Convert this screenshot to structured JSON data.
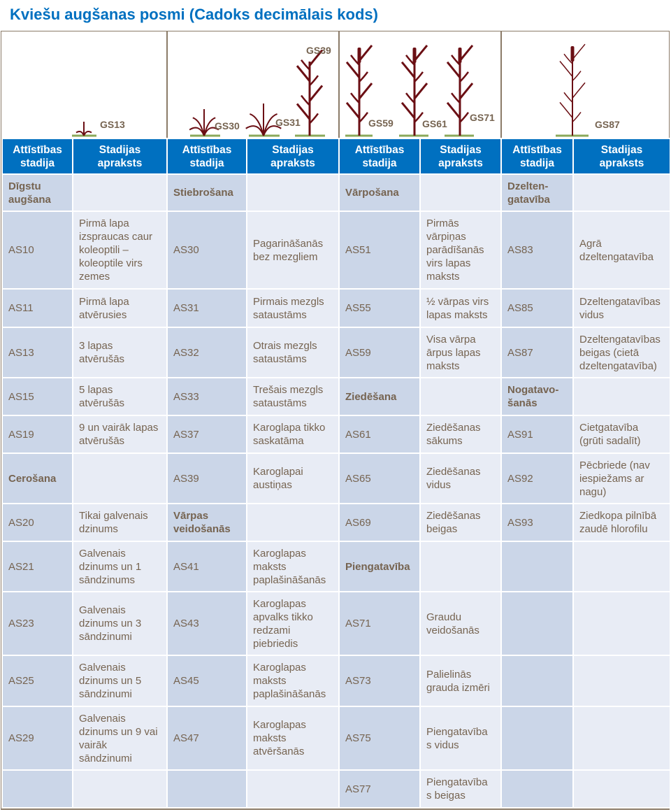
{
  "title": "Kviešu augšanas posmi (Cadoks decimālais kods)",
  "colors": {
    "title": "#0070c0",
    "header_bg": "#0070c0",
    "stage_bg": "#cbd6e8",
    "desc_bg": "#e8ecf5",
    "text": "#766451",
    "plant": "#6b0f14",
    "ground": "#8aa85a"
  },
  "growth_stage_labels": [
    "GS13",
    "GS30",
    "GS31",
    "GS39",
    "GS59",
    "GS61",
    "GS71",
    "GS87"
  ],
  "headers": {
    "stage": "Attīstības stadija",
    "description": "Stadijas apraksts"
  },
  "groups": [
    {
      "rows": [
        {
          "stage": "Dīgstu augšana",
          "heading": true,
          "desc": ""
        },
        {
          "stage": "AS10",
          "desc": "Pirmā lapa izspraucas caur koleoptili – koleoptile virs zemes"
        },
        {
          "stage": "AS11",
          "desc": "Pirmā lapa atvērusies"
        },
        {
          "stage": "AS13",
          "desc": "3 lapas atvērušās"
        },
        {
          "stage": "AS15",
          "desc": "5 lapas atvērušās"
        },
        {
          "stage": "AS19",
          "desc": "9 un vairāk lapas atvērušās"
        },
        {
          "stage": "Cerošana",
          "heading": true,
          "desc": ""
        },
        {
          "stage": "AS20",
          "desc": "Tikai galvenais dzinums"
        },
        {
          "stage": "AS21",
          "desc": "Galvenais dzinums un 1 sāndzinums"
        },
        {
          "stage": "AS23",
          "desc": "Galvenais dzinums un 3 sāndzinumi"
        },
        {
          "stage": "AS25",
          "desc": "Galvenais dzinums un 5 sāndzinumi"
        },
        {
          "stage": "AS29",
          "desc": "Galvenais dzinums un 9 vai vairāk sāndzinumi"
        },
        {
          "stage": "",
          "desc": ""
        }
      ]
    },
    {
      "rows": [
        {
          "stage": "Stiebrošana",
          "heading": true,
          "desc": ""
        },
        {
          "stage": "AS30",
          "desc": "Pagarināšanās bez mezgliem"
        },
        {
          "stage": "AS31",
          "desc": "Pirmais mezgls sataustāms"
        },
        {
          "stage": "AS32",
          "desc": "Otrais mezgls sataustāms"
        },
        {
          "stage": "AS33",
          "desc": "Trešais mezgls sataustāms"
        },
        {
          "stage": "AS37",
          "desc": "Karoglapa tikko saskatāma"
        },
        {
          "stage": "AS39",
          "desc": "Karoglapai austiņas"
        },
        {
          "stage": "Vārpas veidošanās",
          "heading": true,
          "desc": ""
        },
        {
          "stage": "AS41",
          "desc": "Karoglapas maksts paplašināšanās"
        },
        {
          "stage": "AS43",
          "desc": "Karoglapas apvalks tikko redzami piebriedis"
        },
        {
          "stage": "AS45",
          "desc": "Karoglapas maksts paplašināšanās"
        },
        {
          "stage": "AS47",
          "desc": "Karoglapas maksts atvēršanās"
        },
        {
          "stage": "",
          "desc": ""
        }
      ]
    },
    {
      "rows": [
        {
          "stage": "Vārpošana",
          "heading": true,
          "desc": ""
        },
        {
          "stage": "AS51",
          "desc": "Pirmās vārpiņas parādīšanās virs lapas maksts"
        },
        {
          "stage": "AS55",
          "desc": "½ vārpas virs lapas maksts"
        },
        {
          "stage": "AS59",
          "desc": "Visa vārpa ārpus lapas maksts"
        },
        {
          "stage": "Ziedēšana",
          "heading": true,
          "desc": ""
        },
        {
          "stage": "AS61",
          "desc": "Ziedēšanas sākums"
        },
        {
          "stage": "AS65",
          "desc": "Ziedēšanas vidus"
        },
        {
          "stage": "AS69",
          "desc": "Ziedēšanas beigas"
        },
        {
          "stage": "Piengatavība",
          "heading": true,
          "desc": ""
        },
        {
          "stage": "AS71",
          "desc": "Graudu veidošanās"
        },
        {
          "stage": "AS73",
          "desc": "Palielinās grauda izmēri"
        },
        {
          "stage": "AS75",
          "desc": "Piengatavība s vidus"
        },
        {
          "stage": "AS77",
          "desc": "Piengatavība s beigas"
        }
      ]
    },
    {
      "rows": [
        {
          "stage": "Dzelten-gatavība",
          "heading": true,
          "desc": ""
        },
        {
          "stage": "AS83",
          "desc": " Agrā dzeltengatavība"
        },
        {
          "stage": "AS85",
          "desc": "Dzeltengatavības vidus"
        },
        {
          "stage": "AS87",
          "desc": "Dzeltengatavības beigas (cietā dzeltengatavība)"
        },
        {
          "stage": "Nogatavo-šanās",
          "heading": true,
          "desc": ""
        },
        {
          "stage": "AS91",
          "desc": "Cietgatavība (grūti sadalīt)"
        },
        {
          "stage": "AS92",
          "desc": "Pēcbriede (nav iespiežams ar nagu)"
        },
        {
          "stage": "AS93",
          "desc": "Ziedkopa pilnībā zaudē hlorofilu"
        },
        {
          "stage": "",
          "desc": ""
        },
        {
          "stage": "",
          "desc": ""
        },
        {
          "stage": "",
          "desc": ""
        },
        {
          "stage": "",
          "desc": ""
        },
        {
          "stage": "",
          "desc": ""
        }
      ]
    }
  ]
}
